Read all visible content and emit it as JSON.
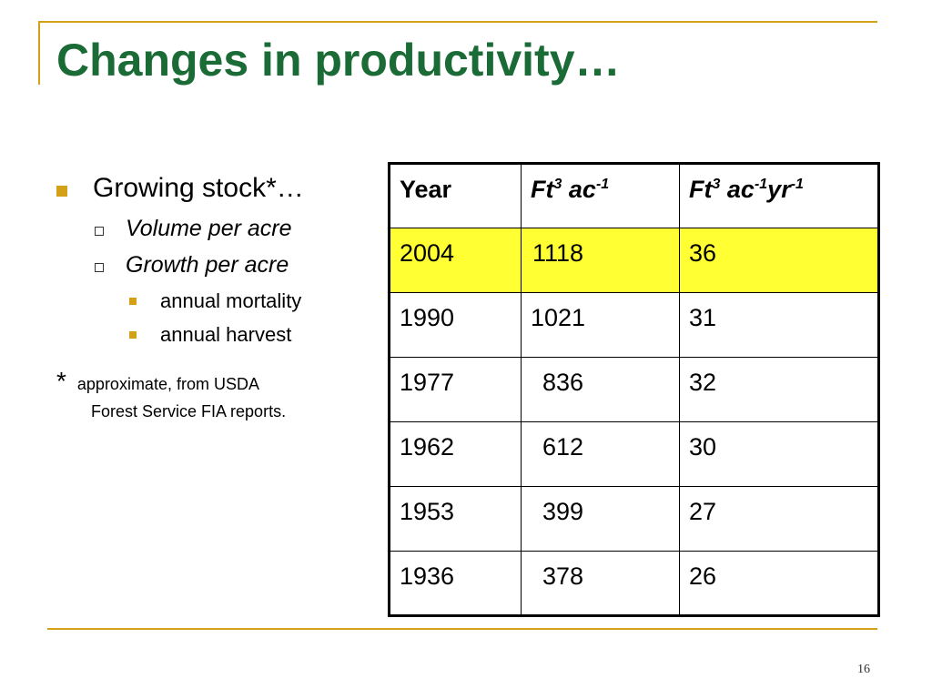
{
  "slide": {
    "title": "Changes in productivity…",
    "page_number": "16",
    "accent_color": "#D4A017",
    "title_color": "#1a6b36",
    "highlight_color": "#FFFF33"
  },
  "bullets": {
    "level1": "Growing stock*…",
    "level2": [
      "Volume per acre",
      "Growth per acre"
    ],
    "level3": [
      "annual mortality",
      "annual harvest"
    ],
    "note_star": "*",
    "note_line1": "approximate, from USDA",
    "note_line2": "Forest Service FIA reports."
  },
  "table": {
    "headers": {
      "year": "Year",
      "col2_base": "Ft",
      "col2_sup1": "3",
      "col2_mid": " ac",
      "col2_sup2": "-1",
      "col3_base": "Ft",
      "col3_sup1": "3",
      "col3_mid": " ac",
      "col3_sup2": "-1",
      "col3_mid2": "yr",
      "col3_sup3": "-1"
    },
    "rows": [
      {
        "year": "2004",
        "volume": "1118",
        "growth": "36",
        "highlighted": true
      },
      {
        "year": "1990",
        "volume": "1021",
        "growth": "31"
      },
      {
        "year": "1977",
        "volume": "836",
        "growth": "32"
      },
      {
        "year": "1962",
        "volume": "612",
        "growth": "30"
      },
      {
        "year": "1953",
        "volume": "399",
        "growth": "27"
      },
      {
        "year": "1936",
        "volume": "378",
        "growth": "26"
      }
    ]
  }
}
